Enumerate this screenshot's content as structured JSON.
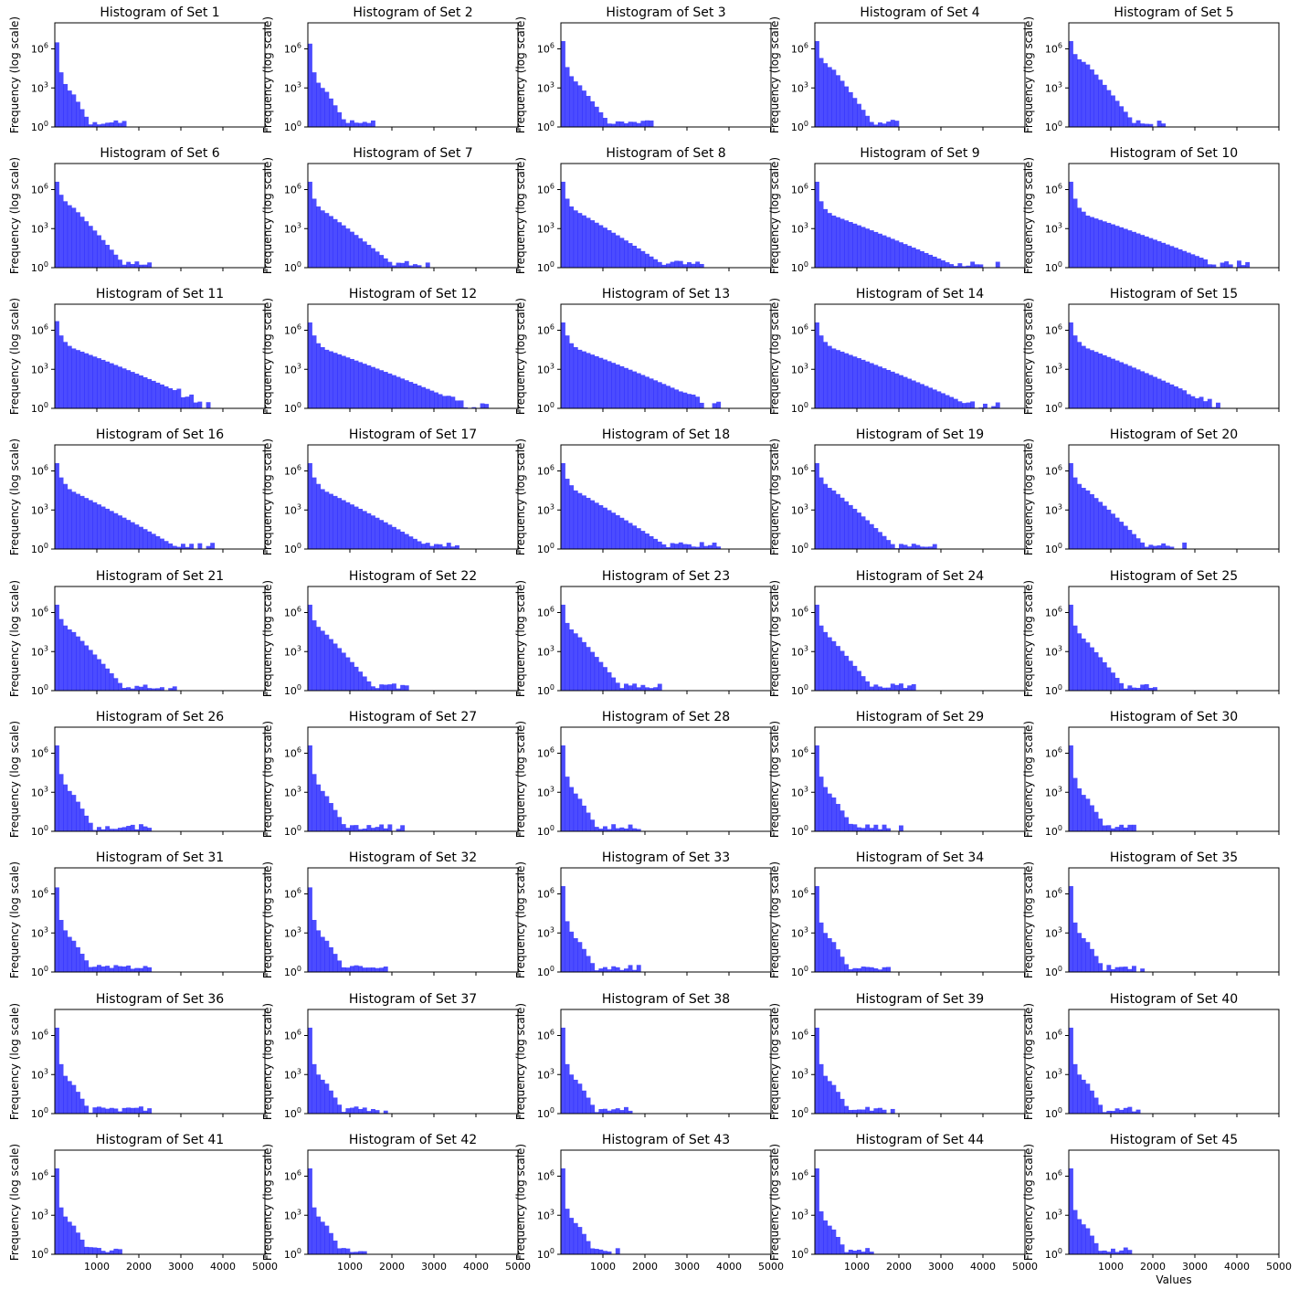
{
  "figure": {
    "xlabel": "Values",
    "bar_color": "#0000ff",
    "bar_alpha": 0.7
  },
  "chart_data": {
    "type": "histogram",
    "y_scale": "log",
    "ylim_log10": [
      0,
      8
    ],
    "xlim": [
      0,
      5000
    ],
    "x_ticks": [
      "1000",
      "2000",
      "3000",
      "4000",
      "5000"
    ],
    "y_ticks": [
      {
        "exp": 0,
        "base": "10",
        "sup": "0"
      },
      {
        "exp": 3,
        "base": "10",
        "sup": "3"
      },
      {
        "exp": 6,
        "base": "10",
        "sup": "6"
      }
    ],
    "ylabel": "Frequency (log scale)",
    "title_prefix": "Histogram of Set ",
    "bin_width": 100,
    "sets": [
      {
        "title": "Histogram of Set 1",
        "peak": 6.5,
        "b": [
          4.2,
          3.3,
          2.8,
          2.5
        ],
        "slope": 0.9,
        "end": 1800
      },
      {
        "title": "Histogram of Set 2",
        "peak": 6.4,
        "b": [
          4.2,
          3.4,
          3.0,
          2.7
        ],
        "slope": 0.82,
        "end": 1700
      },
      {
        "title": "Histogram of Set 3",
        "peak": 6.6,
        "b": [
          4.6,
          3.9,
          3.5,
          3.2
        ],
        "slope": 0.65,
        "end": 2200
      },
      {
        "title": "Histogram of Set 4",
        "peak": 6.6,
        "b": [
          5.3,
          4.9,
          4.6,
          4.4
        ],
        "slope": 0.68,
        "end": 2100
      },
      {
        "title": "Histogram of Set 5",
        "peak": 6.6,
        "b": [
          5.6,
          5.2,
          5.0,
          4.8
        ],
        "slope": 0.62,
        "end": 2300
      },
      {
        "title": "Histogram of Set 6",
        "peak": 6.6,
        "b": [
          5.6,
          5.1,
          4.8,
          4.6
        ],
        "slope": 0.55,
        "end": 2300
      },
      {
        "title": "Histogram of Set 7",
        "peak": 6.6,
        "b": [
          5.3,
          4.7,
          4.4,
          4.2
        ],
        "slope": 0.38,
        "end": 2900
      },
      {
        "title": "Histogram of Set 8",
        "peak": 6.6,
        "b": [
          5.3,
          4.7,
          4.4,
          4.2
        ],
        "slope": 0.3,
        "end": 3400
      },
      {
        "title": "Histogram of Set 9",
        "peak": 6.6,
        "b": [
          5.1,
          4.5,
          4.2,
          4.0
        ],
        "slope": 0.2,
        "end": 4400
      },
      {
        "title": "Histogram of Set 10",
        "peak": 6.6,
        "b": [
          5.3,
          4.6,
          4.3,
          4.0
        ],
        "slope": 0.18,
        "end": 4300
      },
      {
        "title": "Histogram of Set 11",
        "peak": 6.7,
        "b": [
          5.6,
          5.1,
          4.8,
          4.6
        ],
        "slope": 0.2,
        "end": 3800
      },
      {
        "title": "Histogram of Set 12",
        "peak": 6.6,
        "b": [
          5.6,
          5.0,
          4.7,
          4.5
        ],
        "slope": 0.19,
        "end": 4300
      },
      {
        "title": "Histogram of Set 13",
        "peak": 6.6,
        "b": [
          5.6,
          5.0,
          4.7,
          4.5
        ],
        "slope": 0.2,
        "end": 3800
      },
      {
        "title": "Histogram of Set 14",
        "peak": 6.6,
        "b": [
          5.6,
          5.1,
          4.8,
          4.6
        ],
        "slope": 0.2,
        "end": 4400
      },
      {
        "title": "Histogram of Set 15",
        "peak": 6.6,
        "b": [
          5.6,
          5.1,
          4.8,
          4.6
        ],
        "slope": 0.21,
        "end": 3700
      },
      {
        "title": "Histogram of Set 16",
        "peak": 6.6,
        "b": [
          5.5,
          5.0,
          4.6,
          4.4
        ],
        "slope": 0.26,
        "end": 3800
      },
      {
        "title": "Histogram of Set 17",
        "peak": 6.6,
        "b": [
          5.5,
          5.0,
          4.6,
          4.4
        ],
        "slope": 0.26,
        "end": 3600
      },
      {
        "title": "Histogram of Set 18",
        "peak": 6.6,
        "b": [
          5.4,
          4.9,
          4.5,
          4.3
        ],
        "slope": 0.3,
        "end": 3800
      },
      {
        "title": "Histogram of Set 19",
        "peak": 6.6,
        "b": [
          5.5,
          5.0,
          4.7,
          4.5
        ],
        "slope": 0.45,
        "end": 3000
      },
      {
        "title": "Histogram of Set 20",
        "peak": 6.6,
        "b": [
          5.5,
          5.0,
          4.7,
          4.5
        ],
        "slope": 0.47,
        "end": 2800
      },
      {
        "title": "Histogram of Set 21",
        "peak": 6.6,
        "b": [
          5.5,
          5.0,
          4.7,
          4.5
        ],
        "slope": 0.55,
        "end": 2900
      },
      {
        "title": "Histogram of Set 22",
        "peak": 6.6,
        "b": [
          5.4,
          4.9,
          4.6,
          4.3
        ],
        "slope": 0.55,
        "end": 2400
      },
      {
        "title": "Histogram of Set 23",
        "peak": 6.6,
        "b": [
          5.2,
          4.7,
          4.4,
          4.1
        ],
        "slope": 0.6,
        "end": 2500
      },
      {
        "title": "Histogram of Set 24",
        "peak": 6.6,
        "b": [
          5.0,
          4.5,
          4.1,
          3.8
        ],
        "slope": 0.6,
        "end": 2500
      },
      {
        "title": "Histogram of Set 25",
        "peak": 6.6,
        "b": [
          5.0,
          4.4,
          4.0,
          3.7
        ],
        "slope": 0.6,
        "end": 2100
      },
      {
        "title": "Histogram of Set 26",
        "peak": 6.6,
        "b": [
          4.4,
          3.6,
          3.1,
          2.8
        ],
        "slope": 0.85,
        "end": 2300
      },
      {
        "title": "Histogram of Set 27",
        "peak": 6.6,
        "b": [
          4.4,
          3.6,
          3.1,
          2.7
        ],
        "slope": 0.85,
        "end": 2300
      },
      {
        "title": "Histogram of Set 28",
        "peak": 6.6,
        "b": [
          4.2,
          3.4,
          2.9,
          2.5
        ],
        "slope": 0.85,
        "end": 2100
      },
      {
        "title": "Histogram of Set 29",
        "peak": 6.6,
        "b": [
          4.2,
          3.4,
          2.9,
          2.6
        ],
        "slope": 0.8,
        "end": 2100
      },
      {
        "title": "Histogram of Set 30",
        "peak": 6.6,
        "b": [
          4.1,
          3.3,
          2.8,
          2.5
        ],
        "slope": 0.8,
        "end": 1800
      },
      {
        "title": "Histogram of Set 31",
        "peak": 6.5,
        "b": [
          4.0,
          3.2,
          2.7,
          2.4
        ],
        "slope": 0.8,
        "end": 2300
      },
      {
        "title": "Histogram of Set 32",
        "peak": 6.5,
        "b": [
          4.0,
          3.2,
          2.7,
          2.4
        ],
        "slope": 0.8,
        "end": 1900
      },
      {
        "title": "Histogram of Set 33",
        "peak": 6.6,
        "b": [
          3.9,
          3.1,
          2.6,
          2.3
        ],
        "slope": 0.85,
        "end": 1900
      },
      {
        "title": "Histogram of Set 34",
        "peak": 6.6,
        "b": [
          3.8,
          3.0,
          2.6,
          2.3
        ],
        "slope": 0.9,
        "end": 2100
      },
      {
        "title": "Histogram of Set 35",
        "peak": 6.6,
        "b": [
          3.8,
          3.0,
          2.6,
          2.3
        ],
        "slope": 0.85,
        "end": 1800
      },
      {
        "title": "Histogram of Set 36",
        "peak": 6.6,
        "b": [
          3.8,
          2.9,
          2.5,
          2.2
        ],
        "slope": 0.85,
        "end": 2500
      },
      {
        "title": "Histogram of Set 37",
        "peak": 6.6,
        "b": [
          3.8,
          3.0,
          2.6,
          2.3
        ],
        "slope": 0.85,
        "end": 1900
      },
      {
        "title": "Histogram of Set 38",
        "peak": 6.6,
        "b": [
          3.8,
          3.0,
          2.6,
          2.3
        ],
        "slope": 0.85,
        "end": 1700
      },
      {
        "title": "Histogram of Set 39",
        "peak": 6.6,
        "b": [
          3.8,
          2.9,
          2.5,
          2.2
        ],
        "slope": 0.85,
        "end": 1900
      },
      {
        "title": "Histogram of Set 40",
        "peak": 6.6,
        "b": [
          3.8,
          3.0,
          2.6,
          2.3
        ],
        "slope": 0.85,
        "end": 1700
      },
      {
        "title": "Histogram of Set 41",
        "peak": 6.6,
        "b": [
          3.6,
          2.9,
          2.5,
          2.2
        ],
        "slope": 0.85,
        "end": 1600
      },
      {
        "title": "Histogram of Set 42",
        "peak": 6.6,
        "b": [
          3.6,
          2.9,
          2.5,
          2.2
        ],
        "slope": 0.9,
        "end": 1400
      },
      {
        "title": "Histogram of Set 43",
        "peak": 6.6,
        "b": [
          3.5,
          2.8,
          2.4,
          2.1
        ],
        "slope": 0.85,
        "end": 1400
      },
      {
        "title": "Histogram of Set 44",
        "peak": 6.6,
        "b": [
          3.3,
          2.6,
          2.2,
          1.9
        ],
        "slope": 0.9,
        "end": 1500
      },
      {
        "title": "Histogram of Set 45",
        "peak": 6.6,
        "b": [
          3.4,
          2.7,
          2.3,
          2.0
        ],
        "slope": 0.9,
        "end": 1500
      }
    ]
  }
}
